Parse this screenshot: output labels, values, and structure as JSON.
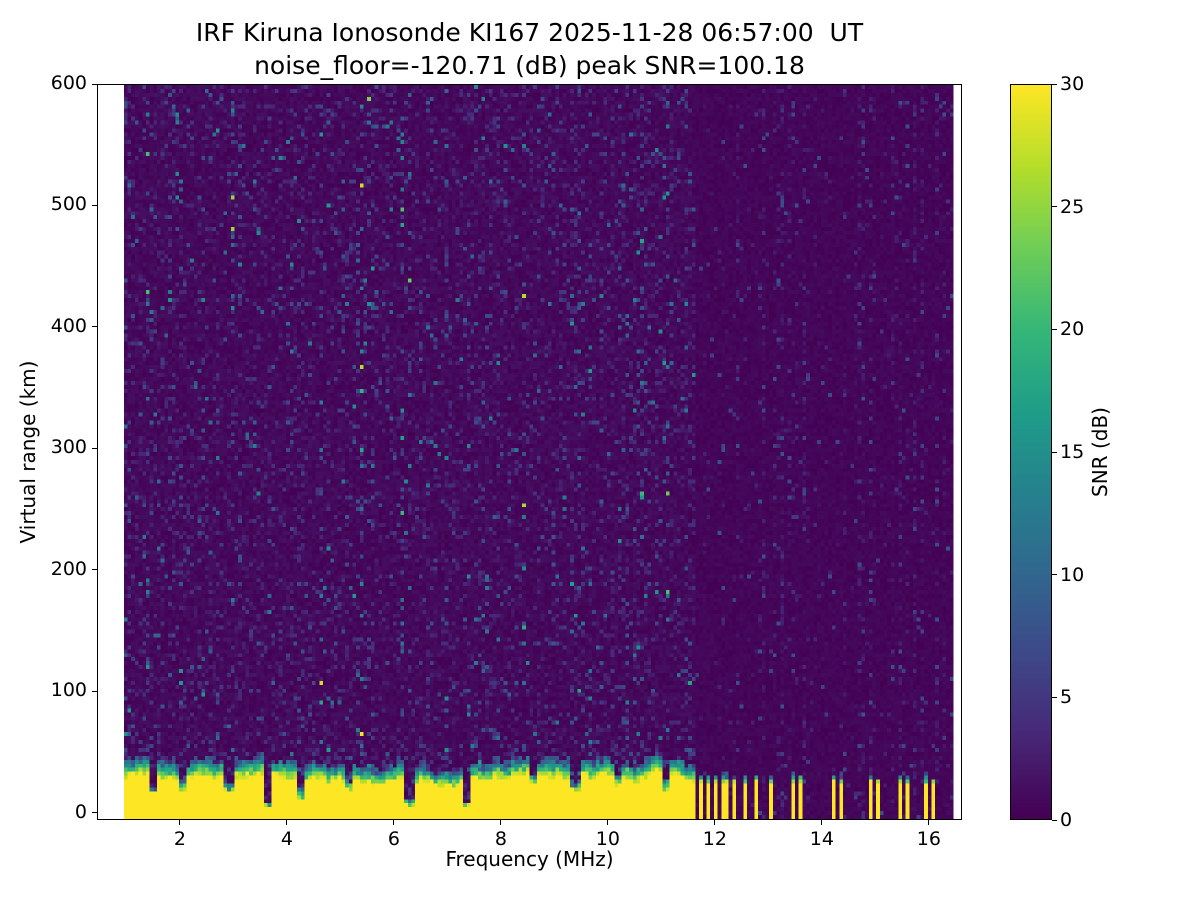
{
  "chart_data": {
    "type": "heatmap",
    "title": "IRF Kiruna Ionosonde KI167 2025-11-28 06:57:00  UT",
    "subtitle": "noise_floor=-120.71 (dB) peak SNR=100.18",
    "station": "IRF Kiruna Ionosonde KI167",
    "timestamp_ut": "2025-11-28 06:57:00",
    "noise_floor_db": -120.71,
    "peak_snr_db": 100.18,
    "xlabel": "Frequency (MHz)",
    "ylabel": "Virtual range (km)",
    "xlim": [
      0.45,
      16.62
    ],
    "ylim": [
      -6,
      600
    ],
    "x_ticks": [
      2,
      4,
      6,
      8,
      10,
      12,
      14,
      16
    ],
    "y_ticks": [
      0,
      100,
      200,
      300,
      400,
      500,
      600
    ],
    "freq_range_mhz": [
      0.92,
      16.45
    ],
    "colormap": "viridis",
    "colorbar": {
      "label": "SNR (dB)",
      "min": 0,
      "max": 30,
      "ticks": [
        0,
        5,
        10,
        15,
        20,
        25,
        30
      ]
    },
    "features": {
      "background_snr_db": [
        0,
        3
      ],
      "ground_echo_band": {
        "strong_snr_db": 30,
        "yellow_top_km": 26,
        "transition_top_km": 42
      },
      "striped_interference_above_mhz": 11.62,
      "sparse_echo_pairs_mhz": [
        13.5,
        14.28,
        14.98,
        15.55,
        16.02
      ]
    },
    "render": {
      "seed": 11,
      "grid_nx": 234,
      "grid_ny": 186,
      "viridis_stops": [
        "#440154",
        "#482878",
        "#3e4989",
        "#31688e",
        "#26828e",
        "#1f9e89",
        "#35b779",
        "#6ece58",
        "#b5de2b",
        "#fde725"
      ],
      "band": {
        "mean_top_km": 42,
        "wander_km": 7,
        "top_min_km": 30,
        "top_max_km": 54,
        "yellow_frac": 0.66,
        "notches": [
          {
            "f": 1.5,
            "d": 0.55
          },
          {
            "f": 2.05,
            "d": 0.3
          },
          {
            "f": 2.9,
            "d": 0.45
          },
          {
            "f": 3.65,
            "d": 0.85
          },
          {
            "f": 4.25,
            "d": 0.55
          },
          {
            "f": 5.15,
            "d": 0.3
          },
          {
            "f": 6.3,
            "d": 0.8
          },
          {
            "f": 7.35,
            "d": 0.78
          },
          {
            "f": 8.6,
            "d": 0.3
          },
          {
            "f": 9.4,
            "d": 0.35
          },
          {
            "f": 10.2,
            "d": 0.25
          },
          {
            "f": 11.1,
            "d": 0.4
          }
        ],
        "stripe_start_mhz": 11.62,
        "stripe_end_mhz": 13.3,
        "stripe_band_top_km": 30,
        "stripe_yellow_top_km": 24,
        "sparse_centers_mhz": [
          13.5,
          13.62,
          14.22,
          14.35,
          14.92,
          15.04,
          15.5,
          15.62,
          15.97,
          16.08
        ],
        "sparse_halfwidth_mhz": 0.035
      }
    }
  }
}
